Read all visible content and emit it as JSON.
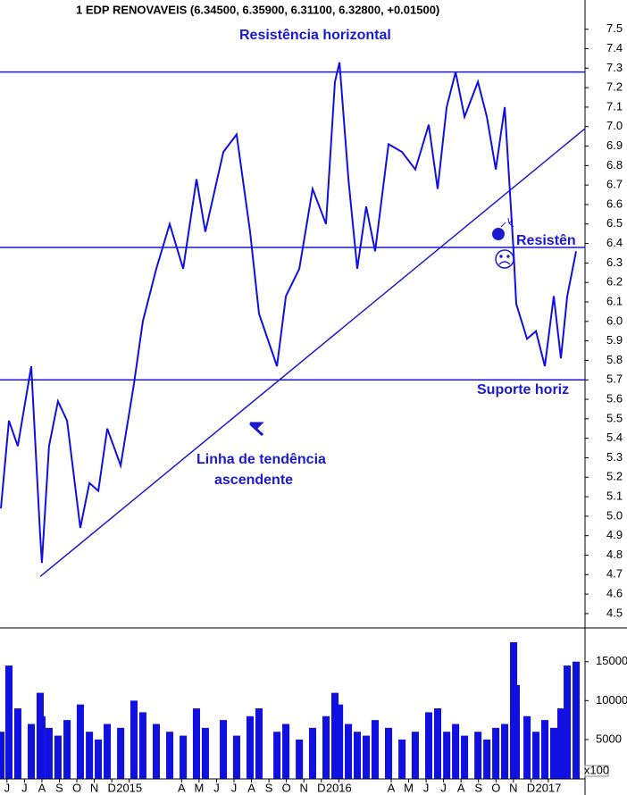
{
  "chart_data": [
    {
      "type": "line",
      "title": "1 EDP RENOVAVEIS (6.34500, 6.35900, 6.31100, 6.32800, +0.01500)",
      "series": [
        {
          "name": "EDP RENOVAVEIS",
          "color": "#1010e0",
          "x": [
            -0.35,
            0.11,
            0.62,
            1.39,
            1.9,
            2.0,
            2.41,
            2.92,
            3.44,
            4.2,
            4.72,
            5.23,
            5.74,
            6.51,
            7.27,
            7.78,
            8.55,
            9.32,
            10.09,
            10.85,
            11.36,
            12.39,
            13.15,
            13.92,
            14.43,
            15.46,
            15.97,
            16.74,
            17.5,
            18.27,
            18.78,
            19.04,
            19.55,
            20.06,
            20.57,
            21.08,
            21.85,
            22.62,
            23.38,
            24.15,
            24.66,
            25.18,
            25.69,
            26.2,
            26.97,
            27.48,
            27.99,
            28.5,
            29.01,
            29.16,
            29.78,
            30.29,
            30.8,
            31.31,
            31.72,
            32.08,
            32.59
          ],
          "values": [
            5.04,
            5.49,
            5.36,
            5.77,
            4.9,
            4.76,
            5.36,
            5.59,
            5.49,
            4.94,
            5.17,
            5.13,
            5.45,
            5.26,
            5.68,
            6.0,
            6.27,
            6.5,
            6.27,
            6.73,
            6.46,
            6.87,
            6.96,
            6.46,
            6.04,
            5.77,
            6.13,
            6.27,
            6.68,
            6.5,
            7.23,
            7.33,
            6.73,
            6.27,
            6.59,
            6.36,
            6.91,
            6.87,
            6.78,
            7.01,
            6.68,
            7.1,
            7.28,
            7.05,
            7.23,
            7.05,
            6.78,
            7.1,
            6.36,
            6.09,
            5.91,
            5.95,
            5.77,
            6.13,
            5.81,
            6.13,
            6.36
          ]
        }
      ],
      "xlim": [
        -0.4,
        33.1
      ],
      "ylim": [
        4.44,
        7.65
      ],
      "yticks": [
        4.5,
        4.6,
        4.7,
        4.8,
        4.9,
        {
          "value": 5,
          "label": "5.0"
        },
        5.1,
        5.2,
        5.3,
        5.4,
        5.5,
        5.6,
        5.7,
        5.8,
        5.9,
        {
          "value": 6,
          "label": "6.0"
        },
        6.1,
        6.2,
        6.3,
        6.4,
        6.5,
        6.6,
        6.7,
        6.8,
        6.9,
        {
          "value": 7,
          "label": "7.0"
        },
        7.1,
        7.2,
        7.3,
        7.4,
        7.5
      ],
      "hlines": [
        7.28,
        6.38,
        5.7
      ],
      "trendline": {
        "x": [
          1.9,
          33.1
        ],
        "y": [
          4.69,
          6.99
        ]
      },
      "annotations": [
        "Resistência horizontal",
        "Linha de tendência",
        "ascendente",
        "Resistên",
        "Suporte horiz"
      ]
    },
    {
      "type": "bar",
      "color": "#1010e0",
      "ylabel": "x100",
      "x": [
        -0.35,
        0.11,
        0.62,
        1.39,
        1.9,
        2.0,
        2.41,
        2.92,
        3.44,
        4.2,
        4.72,
        5.23,
        5.74,
        6.51,
        7.27,
        7.78,
        8.55,
        9.32,
        10.09,
        10.85,
        11.36,
        12.39,
        13.15,
        13.92,
        14.43,
        15.46,
        15.97,
        16.74,
        17.5,
        18.27,
        18.78,
        19.04,
        19.55,
        20.06,
        20.57,
        21.08,
        21.85,
        22.62,
        23.38,
        24.15,
        24.66,
        25.18,
        25.69,
        26.2,
        26.97,
        27.48,
        27.99,
        28.5,
        29.01,
        29.16,
        29.78,
        30.29,
        30.8,
        31.31,
        31.72,
        32.08,
        32.59
      ],
      "values": [
        6000,
        14500,
        9000,
        7000,
        11000,
        8000,
        6500,
        5500,
        7500,
        9500,
        6000,
        5000,
        7000,
        6500,
        10000,
        8500,
        7000,
        6000,
        5500,
        9000,
        6500,
        7500,
        5500,
        8000,
        9000,
        6000,
        7000,
        5000,
        6500,
        8000,
        11000,
        9500,
        7000,
        6000,
        5500,
        7500,
        6500,
        5000,
        6000,
        8500,
        9000,
        6000,
        7000,
        5500,
        6000,
        5000,
        6500,
        7000,
        17500,
        12000,
        8000,
        6000,
        7500,
        6500,
        9000,
        14500,
        15000
      ],
      "xlim": [
        -0.4,
        33.1
      ],
      "ylim": [
        0,
        19100
      ],
      "yticks": [
        5000,
        10000,
        15000
      ],
      "xticks": [
        {
          "value": 0,
          "label": "J"
        },
        {
          "value": 1,
          "label": "J"
        },
        {
          "value": 2,
          "label": "A"
        },
        {
          "value": 3,
          "label": "S"
        },
        {
          "value": 4,
          "label": "O"
        },
        {
          "value": 5,
          "label": "N"
        },
        {
          "value": 6,
          "label": "D"
        },
        {
          "value": 7,
          "label": "2015"
        },
        {
          "value": 10,
          "label": "A"
        },
        {
          "value": 11,
          "label": "M"
        },
        {
          "value": 12,
          "label": "J"
        },
        {
          "value": 13,
          "label": "J"
        },
        {
          "value": 14,
          "label": "A"
        },
        {
          "value": 15,
          "label": "S"
        },
        {
          "value": 16,
          "label": "O"
        },
        {
          "value": 17,
          "label": "N"
        },
        {
          "value": 18,
          "label": "D"
        },
        {
          "value": 19,
          "label": "2016"
        },
        {
          "value": 22,
          "label": "A"
        },
        {
          "value": 23,
          "label": "M"
        },
        {
          "value": 24,
          "label": "J"
        },
        {
          "value": 25,
          "label": "J"
        },
        {
          "value": 26,
          "label": "A"
        },
        {
          "value": 27,
          "label": "S"
        },
        {
          "value": 28,
          "label": "O"
        },
        {
          "value": 29,
          "label": "N"
        },
        {
          "value": 30,
          "label": "D"
        },
        {
          "value": 31,
          "label": "2017"
        }
      ]
    }
  ]
}
